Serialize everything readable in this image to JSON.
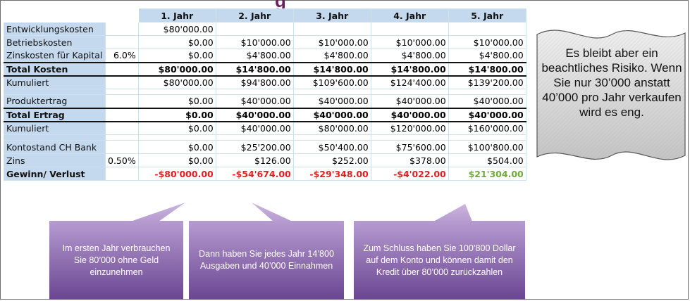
{
  "title": "g",
  "table": {
    "headers": [
      "",
      "",
      "1. Jahr",
      "2. Jahr",
      "3. Jahr",
      "4. Jahr",
      "5. Jahr"
    ],
    "rows": [
      {
        "label": "Entwicklungskosten",
        "pct": "",
        "values": [
          "$80'000.00",
          "",
          "",
          "",
          ""
        ]
      },
      {
        "label": "Betriebskosten",
        "pct": "",
        "values": [
          "$0.00",
          "$10'000.00",
          "$10'000.00",
          "$10'000.00",
          "$10'000.00"
        ]
      },
      {
        "label": "Zinskosten für Kapital",
        "pct": "6.0%",
        "values": [
          "$0.00",
          "$4'800.00",
          "$4'800.00",
          "$4'800.00",
          "$4'800.00"
        ]
      },
      {
        "label": "Total Kosten",
        "pct": "",
        "values": [
          "$80'000.00",
          "$14'800.00",
          "$14'800.00",
          "$14'800.00",
          "$14'800.00"
        ]
      },
      {
        "label": "Kumuliert",
        "pct": "",
        "values": [
          "$80'000.00",
          "$94'800.00",
          "$109'600.00",
          "$124'400.00",
          "$139'200.00"
        ]
      },
      {
        "label": "Produktertrag",
        "pct": "",
        "values": [
          "$0.00",
          "$40'000.00",
          "$40'000.00",
          "$40'000.00",
          "$40'000.00"
        ]
      },
      {
        "label": "Total Ertrag",
        "pct": "",
        "values": [
          "$0.00",
          "$40'000.00",
          "$40'000.00",
          "$40'000.00",
          "$40'000.00"
        ]
      },
      {
        "label": "Kumuliert",
        "pct": "",
        "values": [
          "$0.00",
          "$40'000.00",
          "$80'000.00",
          "$120'000.00",
          "$160'000.00"
        ]
      },
      {
        "label": "Kontostand CH Bank",
        "pct": "",
        "values": [
          "$0.00",
          "$25'200.00",
          "$50'400.00",
          "$75'600.00",
          "$100'800.00"
        ]
      },
      {
        "label": "Zins",
        "pct": "0.50%",
        "values": [
          "$0.00",
          "$126.00",
          "$252.00",
          "$378.00",
          "$504.00"
        ]
      },
      {
        "label": "Gewinn/ Verlust",
        "pct": "",
        "values": [
          "-$80'000.00",
          "-$54'674.00",
          "-$29'348.00",
          "-$4'022.00",
          "$21'304.00"
        ]
      }
    ]
  },
  "note": "Es bleibt aber ein beachtliches Risiko. Wenn Sie nur 30’000 anstatt 40’000 pro Jahr verkaufen wird es eng.",
  "callouts": [
    "Im ersten Jahr verbrauchen Sie 80’000 ohne Geld einzunehmen",
    "Dann haben Sie jedes Jahr 14’800 Ausgaben und 40’000 Einnahmen",
    "Zum Schluss haben Sie 100’800 Dollar auf dem Konto und können damit den Kredit über 80’000 zurückzahlen"
  ],
  "colors": {
    "header_fill": "#c5d9ee",
    "negative": "#e32020",
    "positive": "#6faa3a",
    "callout_top": "#b69bd0",
    "callout_bottom": "#6a4592",
    "title": "#6b1f5c"
  }
}
